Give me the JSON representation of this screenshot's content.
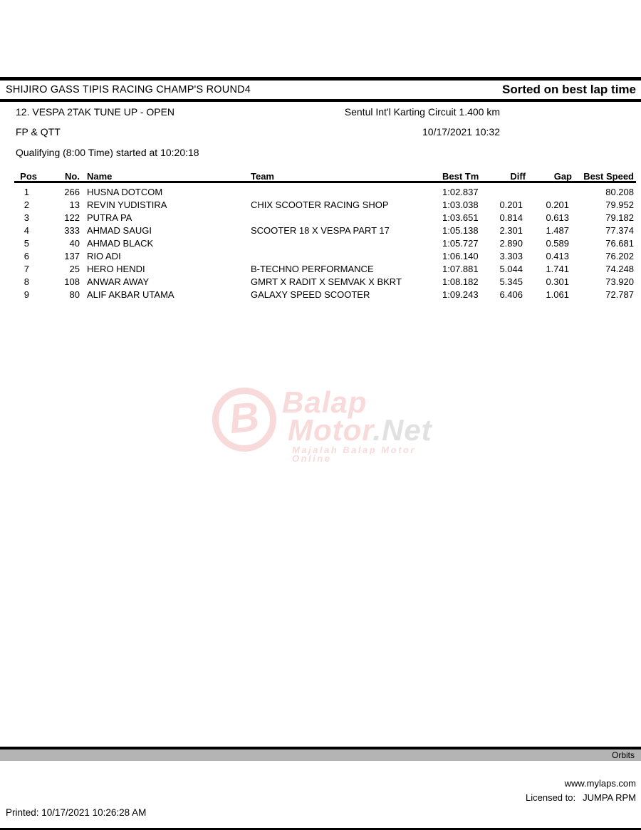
{
  "header": {
    "event_title": "SHIJIRO GASS TIPIS RACING CHAMP'S ROUND4",
    "sort_label": "Sorted on best lap time",
    "class_name": "12. VESPA 2TAK TUNE UP - OPEN",
    "circuit": "Sentul Int'l Karting Circuit 1.400 km",
    "session": "FP & QTT",
    "session_datetime": "10/17/2021 10:32",
    "session_info": "Qualifying (8:00 Time) started at 10:20:18"
  },
  "table": {
    "columns": [
      "Pos",
      "No.",
      "Name",
      "Team",
      "Best Tm",
      "Diff",
      "Gap",
      "Best Speed"
    ],
    "rows": [
      {
        "pos": "1",
        "no": "266",
        "name": "HUSNA DOTCOM",
        "team": "",
        "best_tm": "1:02.837",
        "diff": "",
        "gap": "",
        "best_speed": "80.208"
      },
      {
        "pos": "2",
        "no": "13",
        "name": "REVIN YUDISTIRA",
        "team": "CHIX SCOOTER RACING SHOP",
        "best_tm": "1:03.038",
        "diff": "0.201",
        "gap": "0.201",
        "best_speed": "79.952"
      },
      {
        "pos": "3",
        "no": "122",
        "name": "PUTRA PA",
        "team": "",
        "best_tm": "1:03.651",
        "diff": "0.814",
        "gap": "0.613",
        "best_speed": "79.182"
      },
      {
        "pos": "4",
        "no": "333",
        "name": "AHMAD SAUGI",
        "team": "SCOOTER 18 X VESPA PART 17",
        "best_tm": "1:05.138",
        "diff": "2.301",
        "gap": "1.487",
        "best_speed": "77.374"
      },
      {
        "pos": "5",
        "no": "40",
        "name": "AHMAD BLACK",
        "team": "",
        "best_tm": "1:05.727",
        "diff": "2.890",
        "gap": "0.589",
        "best_speed": "76.681"
      },
      {
        "pos": "6",
        "no": "137",
        "name": "RIO ADI",
        "team": "",
        "best_tm": "1:06.140",
        "diff": "3.303",
        "gap": "0.413",
        "best_speed": "76.202"
      },
      {
        "pos": "7",
        "no": "25",
        "name": "HERO HENDI",
        "team": "B-TECHNO PERFORMANCE",
        "best_tm": "1:07.881",
        "diff": "5.044",
        "gap": "1.741",
        "best_speed": "74.248"
      },
      {
        "pos": "8",
        "no": "108",
        "name": "ANWAR AWAY",
        "team": "GMRT X RADIT X SEMVAK X BKRT",
        "best_tm": "1:08.182",
        "diff": "5.345",
        "gap": "0.301",
        "best_speed": "73.920"
      },
      {
        "pos": "9",
        "no": "80",
        "name": "ALIF AKBAR UTAMA",
        "team": "GALAXY SPEED SCOOTER",
        "best_tm": "1:09.243",
        "diff": "6.406",
        "gap": "1.061",
        "best_speed": "72.787"
      }
    ]
  },
  "watermark": {
    "monogram": "B",
    "line1": "Balap",
    "line2": "Motor",
    "suffix": ".Net",
    "tagline": "Majalah Balap Motor Online"
  },
  "footer": {
    "orbits_label": "Orbits",
    "website": "www.mylaps.com",
    "licensed_label": "Licensed to:",
    "licensee": "JUMPA RPM",
    "printed": "Printed: 10/17/2021 10:26:28 AM"
  },
  "colors": {
    "watermark_pink": "#f4bcbc",
    "watermark_gray": "#c9c9c9",
    "orbits_bar_bg": "#b4b4b4",
    "rule_black": "#000000"
  }
}
